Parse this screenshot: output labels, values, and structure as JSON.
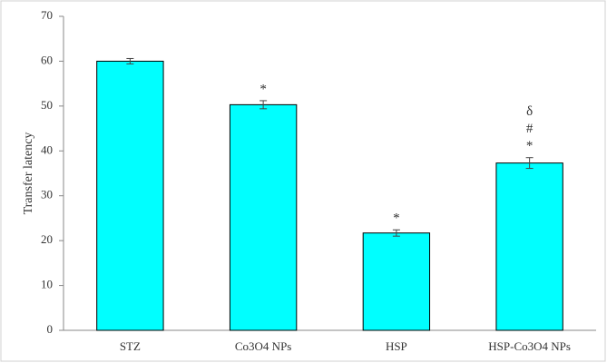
{
  "chart_data": {
    "type": "bar",
    "y_label": "Transfer latency",
    "categories": [
      "STZ",
      "Co3O4 NPs",
      "HSP",
      "HSP-Co3O4 NPs"
    ],
    "values": [
      60,
      50.3,
      21.7,
      37.3
    ],
    "errors": [
      0.6,
      0.9,
      0.7,
      1.2
    ],
    "annotations": [
      [],
      [
        "*"
      ],
      [
        "*"
      ],
      [
        "*",
        "#",
        "δ"
      ]
    ],
    "color": "#00ffff",
    "ylim": [
      0,
      70
    ],
    "yticks": [
      0,
      10,
      20,
      30,
      40,
      50,
      60,
      70
    ],
    "grid": false
  }
}
